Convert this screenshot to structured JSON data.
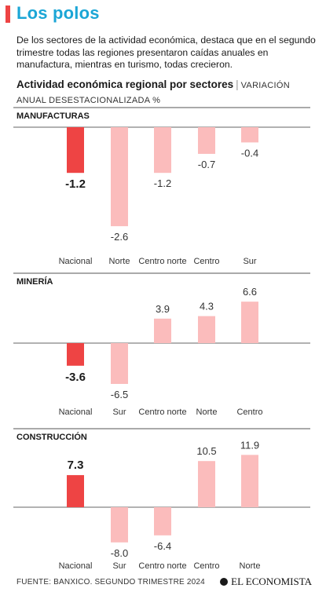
{
  "header": {
    "title": "Los polos",
    "accent_color": "#ee4444",
    "title_color": "#1ba6d6"
  },
  "lead": "De los sectores de la actividad económica, destaca que en el segundo trimestre todas las regiones presentaron caídas anuales en manufactura, mientras en turismo, todas crecieron.",
  "subhead": {
    "title": "Actividad económica regional por sectores",
    "separator": "|",
    "unit": "VARIACIÓN ANUAL DESESTACIONALIZADA %"
  },
  "colors": {
    "highlight": "#ee4444",
    "regular": "#fbbcbc"
  },
  "chart_data": [
    {
      "type": "bar",
      "title": "MANUFACTURAS",
      "categories": [
        "Nacional",
        "Norte",
        "Centro norte",
        "Centro",
        "Sur"
      ],
      "values": [
        -1.2,
        -2.6,
        -1.2,
        -0.7,
        -0.4
      ],
      "value_labels": [
        "-1.2",
        "-2.6",
        "-1.2",
        "-0.7",
        "-0.4"
      ],
      "highlight_index": 0
    },
    {
      "type": "bar",
      "title": "MINERÍA",
      "categories": [
        "Nacional",
        "Sur",
        "Centro norte",
        "Norte",
        "Centro"
      ],
      "values": [
        -3.6,
        -6.5,
        3.9,
        4.3,
        6.6
      ],
      "value_labels": [
        "-3.6",
        "-6.5",
        "3.9",
        "4.3",
        "6.6"
      ],
      "highlight_index": 0
    },
    {
      "type": "bar",
      "title": "CONSTRUCCIÓN",
      "categories": [
        "Nacional",
        "Sur",
        "Centro norte",
        "Centro",
        "Norte"
      ],
      "values": [
        7.3,
        -8.0,
        -6.4,
        10.5,
        11.9
      ],
      "value_labels": [
        "7.3",
        "-8.0",
        "-6.4",
        "10.5",
        "11.9"
      ],
      "highlight_index": 0
    }
  ],
  "footer": {
    "source": "FUENTE: BANXICO. SEGUNDO TRIMESTRE 2024",
    "logo": "EL ECONOMISTA"
  }
}
